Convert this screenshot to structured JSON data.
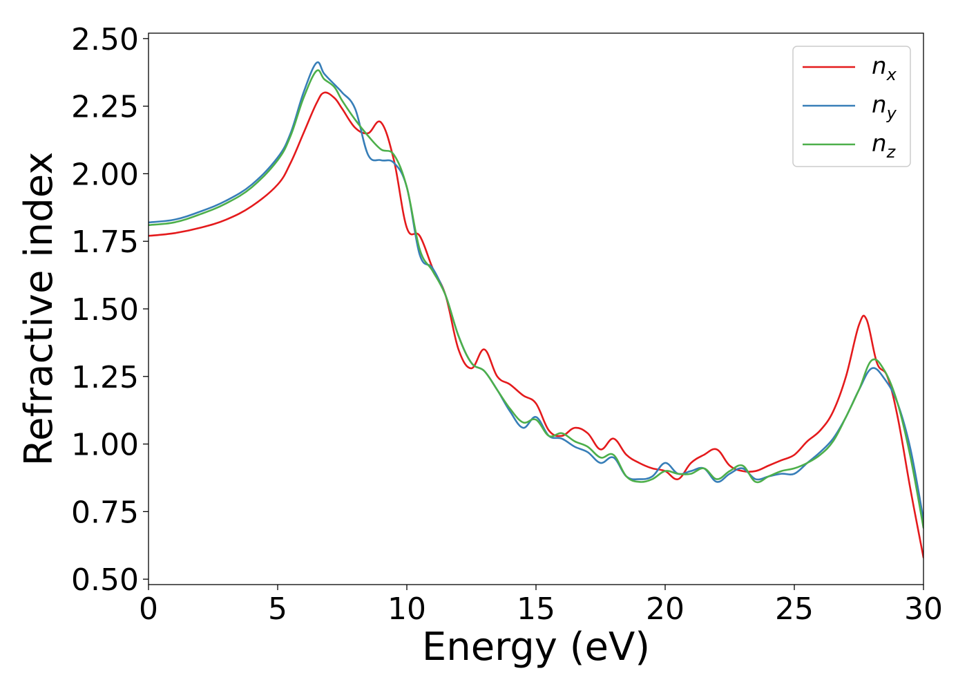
{
  "chart_data": {
    "type": "line",
    "xlabel": "Energy (eV)",
    "ylabel": "Refractive index",
    "xlim": [
      0,
      30
    ],
    "ylim": [
      0.48,
      2.52
    ],
    "xticks": [
      0,
      5,
      10,
      15,
      20,
      25,
      30
    ],
    "xtick_labels": [
      "0",
      "5",
      "10",
      "15",
      "20",
      "25",
      "30"
    ],
    "yticks": [
      0.5,
      0.75,
      1.0,
      1.25,
      1.5,
      1.75,
      2.0,
      2.25,
      2.5
    ],
    "ytick_labels": [
      "0.50",
      "0.75",
      "1.00",
      "1.25",
      "1.50",
      "1.75",
      "2.00",
      "2.25",
      "2.50"
    ],
    "grid": false,
    "legend_position": "top-right",
    "series": [
      {
        "name": "n",
        "subscript": "x",
        "color": "#e41a1c",
        "x": [
          0,
          1,
          2,
          3,
          4,
          5,
          5.5,
          6,
          6.5,
          6.8,
          7.2,
          7.5,
          8,
          8.5,
          9,
          9.5,
          10,
          10.5,
          11,
          11.5,
          12,
          12.5,
          13,
          13.5,
          14,
          14.5,
          15,
          15.5,
          16,
          16.5,
          17,
          17.5,
          18,
          18.5,
          19,
          19.5,
          20,
          20.5,
          21,
          21.5,
          22,
          22.5,
          23,
          23.5,
          24,
          24.5,
          25,
          25.5,
          26,
          26.5,
          27,
          27.5,
          27.8,
          28.2,
          28.6,
          29,
          29.5,
          30
        ],
        "y": [
          1.77,
          1.78,
          1.8,
          1.83,
          1.88,
          1.96,
          2.04,
          2.15,
          2.26,
          2.3,
          2.28,
          2.24,
          2.17,
          2.15,
          2.19,
          2.05,
          1.8,
          1.77,
          1.65,
          1.55,
          1.35,
          1.28,
          1.35,
          1.25,
          1.22,
          1.18,
          1.15,
          1.05,
          1.03,
          1.06,
          1.04,
          0.98,
          1.02,
          0.96,
          0.93,
          0.91,
          0.9,
          0.87,
          0.93,
          0.96,
          0.98,
          0.92,
          0.9,
          0.9,
          0.92,
          0.94,
          0.96,
          1.01,
          1.05,
          1.12,
          1.25,
          1.44,
          1.46,
          1.3,
          1.25,
          1.1,
          0.83,
          0.58
        ]
      },
      {
        "name": "n",
        "subscript": "y",
        "color": "#377eb8",
        "x": [
          0,
          1,
          2,
          3,
          4,
          5,
          5.5,
          6,
          6.5,
          6.8,
          7.2,
          7.5,
          8,
          8.5,
          9,
          9.5,
          10,
          10.5,
          11,
          11.5,
          12,
          12.5,
          13,
          13.5,
          14,
          14.5,
          15,
          15.5,
          16,
          16.5,
          17,
          17.5,
          18,
          18.5,
          19,
          19.5,
          20,
          20.5,
          21,
          21.5,
          22,
          22.5,
          23,
          23.5,
          24,
          24.5,
          25,
          25.5,
          26,
          26.5,
          27,
          27.5,
          28,
          28.5,
          29,
          29.5,
          30
        ],
        "y": [
          1.82,
          1.83,
          1.86,
          1.9,
          1.96,
          2.06,
          2.15,
          2.3,
          2.41,
          2.37,
          2.33,
          2.3,
          2.24,
          2.07,
          2.05,
          2.04,
          1.95,
          1.7,
          1.65,
          1.55,
          1.4,
          1.3,
          1.27,
          1.2,
          1.12,
          1.06,
          1.1,
          1.03,
          1.02,
          0.99,
          0.97,
          0.93,
          0.95,
          0.88,
          0.87,
          0.88,
          0.93,
          0.89,
          0.9,
          0.91,
          0.86,
          0.89,
          0.91,
          0.87,
          0.88,
          0.89,
          0.89,
          0.93,
          0.97,
          1.02,
          1.1,
          1.2,
          1.28,
          1.24,
          1.15,
          0.98,
          0.72
        ]
      },
      {
        "name": "n",
        "subscript": "z",
        "color": "#4daf4a",
        "x": [
          0,
          1,
          2,
          3,
          4,
          5,
          5.5,
          6,
          6.5,
          6.8,
          7.2,
          7.5,
          8,
          8.5,
          9,
          9.5,
          10,
          10.5,
          11,
          11.5,
          12,
          12.5,
          13,
          13.5,
          14,
          14.5,
          15,
          15.5,
          16,
          16.5,
          17,
          17.5,
          18,
          18.5,
          19,
          19.5,
          20,
          20.5,
          21,
          21.5,
          22,
          22.5,
          23,
          23.5,
          24,
          24.5,
          25,
          25.5,
          26,
          26.5,
          27,
          27.5,
          28,
          28.5,
          29,
          29.5,
          30
        ],
        "y": [
          1.81,
          1.82,
          1.85,
          1.89,
          1.95,
          2.05,
          2.14,
          2.28,
          2.38,
          2.35,
          2.32,
          2.27,
          2.2,
          2.14,
          2.09,
          2.07,
          1.95,
          1.72,
          1.64,
          1.55,
          1.4,
          1.3,
          1.27,
          1.2,
          1.13,
          1.08,
          1.09,
          1.03,
          1.04,
          1.01,
          0.99,
          0.95,
          0.96,
          0.88,
          0.86,
          0.87,
          0.9,
          0.89,
          0.89,
          0.91,
          0.87,
          0.9,
          0.92,
          0.86,
          0.88,
          0.9,
          0.91,
          0.93,
          0.96,
          1.01,
          1.1,
          1.2,
          1.31,
          1.27,
          1.15,
          0.95,
          0.69
        ]
      }
    ]
  }
}
